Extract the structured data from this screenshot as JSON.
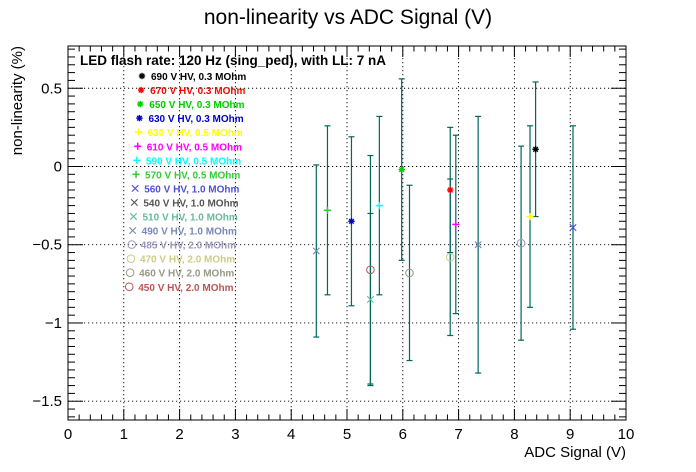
{
  "chart_data": {
    "type": "scatter",
    "title": "non-linearity vs ADC Signal (V)",
    "xlabel": "ADC Signal (V)",
    "ylabel": "non-linearity (%)",
    "annotation": "LED flash rate: 120 Hz  (sing_ped), with LL: 7 nA",
    "xlim": [
      0,
      10
    ],
    "ylim": [
      -1.62,
      0.77
    ],
    "x_ticks": [
      0,
      1,
      2,
      3,
      4,
      5,
      6,
      7,
      8,
      9,
      10
    ],
    "y_ticks": [
      -1.5,
      -1,
      -0.5,
      0,
      0.5
    ],
    "y_tick_labels": [
      "−1.5",
      "−1",
      "−0.5",
      "0",
      "0.5"
    ],
    "grid": true,
    "legend_position": "top-left",
    "errorbar_color": "#00665e",
    "series": [
      {
        "name": "690 V HV, 0.3 MOhm",
        "marker": "star",
        "color": "#000000",
        "points": [
          {
            "x": 8.38,
            "y": 0.11,
            "err": 0.43
          }
        ]
      },
      {
        "name": "670 V HV, 0.3 MOhm",
        "marker": "star",
        "color": "#ff0000",
        "points": [
          {
            "x": 6.85,
            "y": -0.15,
            "err": 0.4
          }
        ]
      },
      {
        "name": "650 V HV, 0.3 MOhm",
        "marker": "star",
        "color": "#00cc00",
        "points": [
          {
            "x": 5.98,
            "y": -0.02,
            "err": 0.58
          }
        ]
      },
      {
        "name": "630 V HV, 0.3 MOhm",
        "marker": "star",
        "color": "#0000cc",
        "points": [
          {
            "x": 5.08,
            "y": -0.35,
            "err": 0.54
          }
        ]
      },
      {
        "name": "630 V HV, 0.5 MOhm",
        "marker": "plus",
        "color": "#ffff00",
        "points": [
          {
            "x": 8.28,
            "y": -0.32,
            "err": 0.58
          }
        ]
      },
      {
        "name": "610 V HV, 0.5 MOhm",
        "marker": "plus",
        "color": "#ff00ff",
        "points": [
          {
            "x": 6.95,
            "y": -0.37,
            "err": 0.57
          }
        ]
      },
      {
        "name": "590 V HV, 0.5 MOhm",
        "marker": "plus",
        "color": "#00ffff",
        "points": [
          {
            "x": 5.58,
            "y": -0.25,
            "err": 0.57
          }
        ]
      },
      {
        "name": "570 V HV, 0.5 MOhm",
        "marker": "plus",
        "color": "#33cc33",
        "points": [
          {
            "x": 4.65,
            "y": -0.28,
            "err": 0.54
          }
        ]
      },
      {
        "name": "560 V HV, 1.0 MOhm",
        "marker": "x",
        "color": "#5050dd",
        "points": [
          {
            "x": 9.05,
            "y": -0.39,
            "err": 0.65
          }
        ]
      },
      {
        "name": "540 V HV, 1.0 MOhm",
        "marker": "x",
        "color": "#555555",
        "points": []
      },
      {
        "name": "510 V HV, 1.0 MOhm",
        "marker": "x",
        "color": "#66bb99",
        "points": [
          {
            "x": 5.42,
            "y": -0.85,
            "err": 0.55
          }
        ]
      },
      {
        "name": "490 V HV, 1.0 MOhm",
        "marker": "x",
        "color": "#7788bb",
        "points": [
          {
            "x": 4.45,
            "y": -0.54,
            "err": 0.55
          },
          {
            "x": 7.35,
            "y": -0.5,
            "err": 0.82
          }
        ]
      },
      {
        "name": "485 V HV, 2.0 MOhm",
        "marker": "circle",
        "color": "#9999bb",
        "points": [
          {
            "x": 8.12,
            "y": -0.49,
            "err": 0.62
          }
        ]
      },
      {
        "name": "470 V HV, 2.0 MOhm",
        "marker": "circle",
        "color": "#cccc88",
        "points": [
          {
            "x": 6.85,
            "y": -0.58,
            "err": 0.5
          }
        ]
      },
      {
        "name": "460 V HV, 2.0 MOhm",
        "marker": "circle",
        "color": "#999988",
        "points": [
          {
            "x": 6.12,
            "y": -0.68,
            "err": 0.56
          }
        ]
      },
      {
        "name": "450 V HV, 2.0 MOhm",
        "marker": "circle",
        "color": "#bb5555",
        "points": [
          {
            "x": 5.42,
            "y": -0.66,
            "err": 0.73
          }
        ]
      }
    ]
  }
}
